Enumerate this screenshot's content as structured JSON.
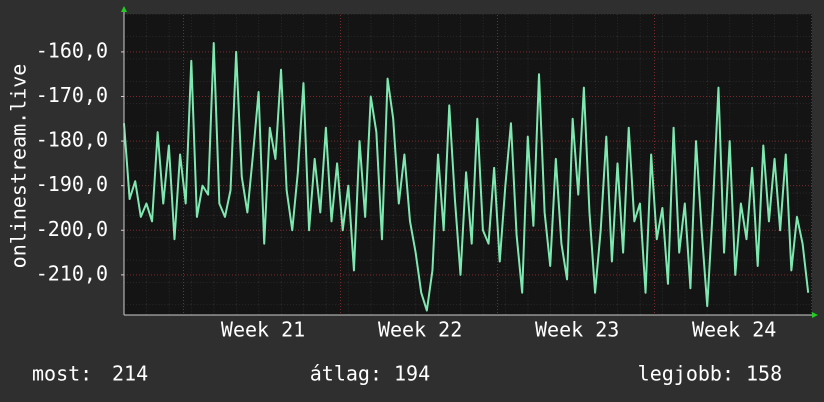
{
  "chart_data": {
    "type": "line",
    "ylabel": "onlinestream.live",
    "xlim": [
      0,
      30.67
    ],
    "xticks": [
      {
        "value": 6.2,
        "label": "Week 21"
      },
      {
        "value": 13.2,
        "label": "Week 22"
      },
      {
        "value": 20.2,
        "label": "Week 23"
      },
      {
        "value": 27.2,
        "label": "Week 24"
      }
    ],
    "ylim": [
      -219,
      -151.5
    ],
    "yticks": [
      {
        "value": -160,
        "label": "-160,0"
      },
      {
        "value": -170,
        "label": "-170,0"
      },
      {
        "value": -180,
        "label": "-180,0"
      },
      {
        "value": -190,
        "label": "-190,0"
      },
      {
        "value": -200,
        "label": "-200,0"
      },
      {
        "value": -210,
        "label": "-210,0"
      }
    ],
    "grid": true,
    "x": [
      0,
      0.25,
      0.5,
      0.75,
      1,
      1.25,
      1.5,
      1.75,
      2,
      2.25,
      2.5,
      2.75,
      3,
      3.25,
      3.5,
      3.75,
      4,
      4.25,
      4.5,
      4.75,
      5,
      5.25,
      5.5,
      5.75,
      6,
      6.25,
      6.5,
      6.75,
      7,
      7.25,
      7.5,
      7.75,
      8,
      8.25,
      8.5,
      8.75,
      9,
      9.25,
      9.5,
      9.75,
      10,
      10.25,
      10.5,
      10.75,
      11,
      11.25,
      11.5,
      11.75,
      12,
      12.25,
      12.5,
      12.75,
      13,
      13.25,
      13.5,
      13.75,
      14,
      14.25,
      14.5,
      14.75,
      15,
      15.25,
      15.5,
      15.75,
      16,
      16.25,
      16.5,
      16.75,
      17,
      17.25,
      17.5,
      17.75,
      18,
      18.25,
      18.5,
      18.75,
      19,
      19.25,
      19.5,
      19.75,
      20,
      20.25,
      20.5,
      20.75,
      21,
      21.25,
      21.5,
      21.75,
      22,
      22.25,
      22.5,
      22.75,
      23,
      23.25,
      23.5,
      23.75,
      24,
      24.25,
      24.5,
      24.75,
      25,
      25.25,
      25.5,
      25.75,
      26,
      26.25,
      26.5,
      26.75,
      27,
      27.25,
      27.5,
      27.75,
      28,
      28.25,
      28.5,
      28.75,
      29,
      29.25,
      29.5,
      29.75,
      30,
      30.25,
      30.5
    ],
    "series": [
      {
        "color": "#7fe8b0",
        "values": [
          -176,
          -193,
          -189,
          -197,
          -194,
          -198,
          -178,
          -194,
          -181,
          -202,
          -183,
          -194,
          -162,
          -197,
          -190,
          -192,
          -158,
          -194,
          -197,
          -191,
          -160,
          -188,
          -196,
          -183,
          -169,
          -203,
          -177,
          -184,
          -164,
          -191,
          -200,
          -187,
          -167,
          -200,
          -184,
          -196,
          -177,
          -198,
          -185,
          -200,
          -190,
          -209,
          -180,
          -197,
          -170,
          -178,
          -202,
          -166,
          -175,
          -194,
          -183,
          -198,
          -205,
          -214,
          -218,
          -209,
          -183,
          -200,
          -172,
          -193,
          -210,
          -187,
          -203,
          -175,
          -200,
          -203,
          -186,
          -207,
          -190,
          -176,
          -201,
          -214,
          -179,
          -199,
          -165,
          -196,
          -208,
          -184,
          -203,
          -211,
          -175,
          -192,
          -168,
          -196,
          -214,
          -200,
          -179,
          -207,
          -185,
          -205,
          -177,
          -198,
          -194,
          -214,
          -183,
          -202,
          -195,
          -212,
          -177,
          -205,
          -194,
          -213,
          -180,
          -200,
          -217,
          -195,
          -168,
          -205,
          -180,
          -210,
          -194,
          -202,
          -186,
          -208,
          -181,
          -198,
          -184,
          -200,
          -183,
          -209,
          -197,
          -203,
          -214
        ]
      }
    ]
  },
  "stats": [
    {
      "label": "most:",
      "value": 214
    },
    {
      "label": "átlag:",
      "value": 194
    },
    {
      "label": "legjobb:",
      "value": 158
    }
  ]
}
